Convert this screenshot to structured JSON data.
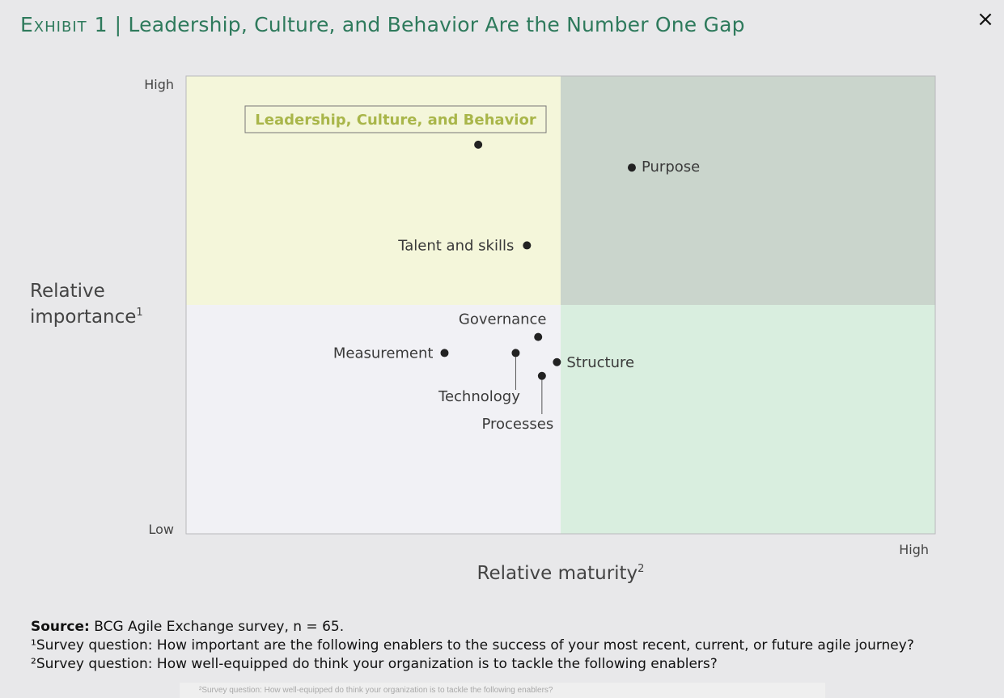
{
  "header": {
    "exhibit": "Exhibit 1",
    "separator": "|",
    "title": "Leadership, Culture, and Behavior Are the Number One Gap",
    "close_icon": "×"
  },
  "chart_data": {
    "type": "scatter",
    "xlabel": "Relative maturity",
    "xlabel_sup": "2",
    "ylabel_line1": "Relative",
    "ylabel_line2": "importance",
    "ylabel_sup": "1",
    "x_tick_high": "High",
    "y_tick_high": "High",
    "y_tick_low": "Low",
    "xlim": [
      0,
      100
    ],
    "ylim": [
      0,
      100
    ],
    "x_divider": 50,
    "y_divider": 50,
    "quadrant_colors": {
      "top_left": "#f4f6da",
      "top_right": "#cad5cc",
      "bottom_left": "#f1f1f5",
      "bottom_right": "#d9eedf"
    },
    "highlight_color": "#a9b64a",
    "points": [
      {
        "name": "Leadership, Culture, and Behavior",
        "x": 39,
        "y": 85,
        "highlight": true
      },
      {
        "name": "Purpose",
        "x": 59.5,
        "y": 80,
        "highlight": false
      },
      {
        "name": "Talent and skills",
        "x": 45.5,
        "y": 63,
        "highlight": false
      },
      {
        "name": "Governance",
        "x": 47,
        "y": 43,
        "highlight": false
      },
      {
        "name": "Measurement",
        "x": 34.5,
        "y": 39.5,
        "highlight": false
      },
      {
        "name": "Technology",
        "x": 44,
        "y": 39.5,
        "highlight": false
      },
      {
        "name": "Structure",
        "x": 49.5,
        "y": 37.5,
        "highlight": false
      },
      {
        "name": "Processes",
        "x": 47.5,
        "y": 34.5,
        "highlight": false
      }
    ]
  },
  "footnotes": {
    "source_label": "Source:",
    "source_text": " BCG Agile Exchange survey, n = 65.",
    "note1": "¹Survey question: How important are the following enablers to the success of your most recent, current, or future agile journey?",
    "note2": "²Survey question: How well-equipped do think your organization is to tackle the following enablers?",
    "ghost_note": "²Survey question: How well-equipped do think your organization is to tackle the following enablers?"
  }
}
